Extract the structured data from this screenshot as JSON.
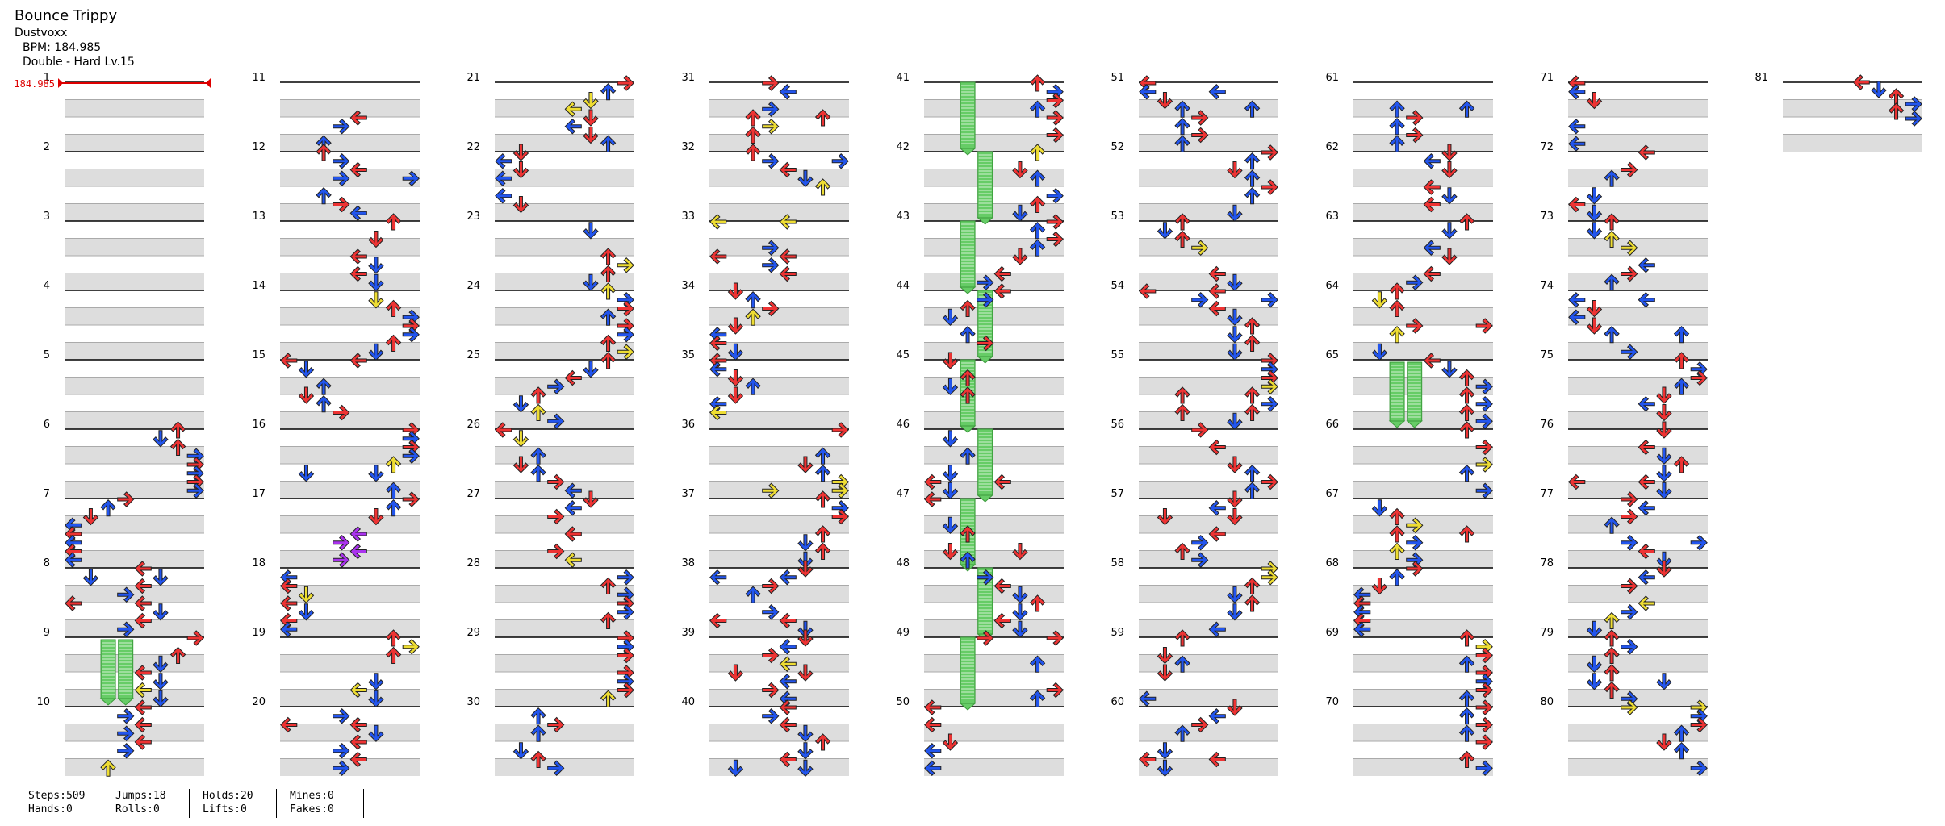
{
  "song": {
    "title": "Bounce Trippy",
    "artist": "Dustvoxx",
    "bpm_line": "BPM: 184.985",
    "difficulty_line": "Double - Hard  Lv.15"
  },
  "bpm_marker": "184.985",
  "colors": {
    "quarter_note": "#ee3333",
    "eighth_note": "#2255ee",
    "sixteenth_note": "#eedd33",
    "twelfth_note": "#aa33ee",
    "hold_body": "#66cc66",
    "beat_shade": "#dddddd",
    "bpm_line": "#dd0000"
  },
  "measures": [
    "1",
    "2",
    "3",
    "4",
    "5",
    "6",
    "7",
    "8",
    "9",
    "10",
    "11",
    "12",
    "13",
    "14",
    "15",
    "16",
    "17",
    "18",
    "19",
    "20",
    "21",
    "22",
    "23",
    "24",
    "25",
    "26",
    "27",
    "28",
    "29",
    "30",
    "31",
    "32",
    "33",
    "34",
    "35",
    "36",
    "37",
    "38",
    "39",
    "40",
    "41",
    "42",
    "43",
    "44",
    "45",
    "46",
    "47",
    "48",
    "49",
    "50",
    "51",
    "52",
    "53",
    "54",
    "55",
    "56",
    "57",
    "58",
    "59",
    "60",
    "61",
    "62",
    "63",
    "64",
    "65",
    "66",
    "67",
    "68",
    "69",
    "70",
    "71",
    "72",
    "73",
    "74",
    "75",
    "76",
    "77",
    "78",
    "79",
    "80",
    "81"
  ],
  "stats": {
    "steps": "Steps:509",
    "hands": "Hands:0",
    "jumps": "Jumps:18",
    "rolls": "Rolls:0",
    "holds": "Holds:20",
    "lifts": "Lifts:0",
    "mines": "Mines:0",
    "fakes": "Fakes:0"
  }
}
